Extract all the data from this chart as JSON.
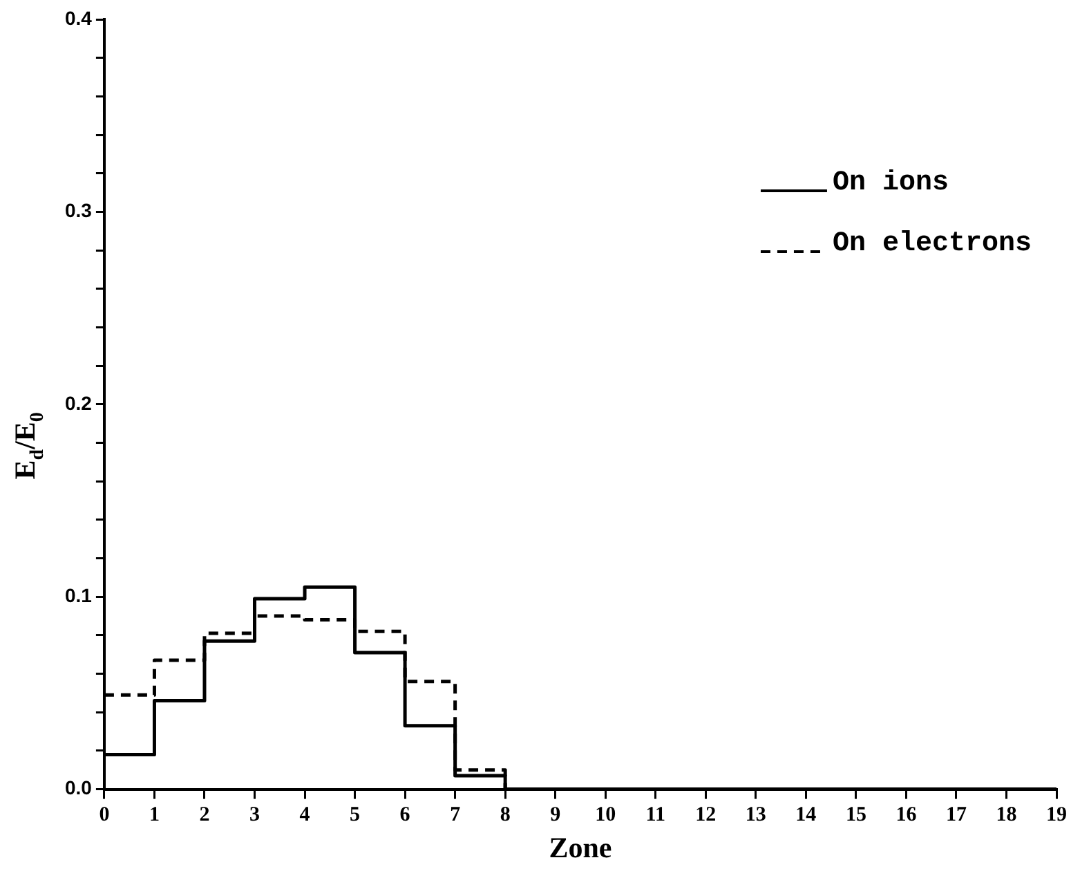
{
  "chart_data": {
    "type": "step",
    "xlabel": "Zone",
    "ylabel": "E$_{d}$/E$_{0}$",
    "x": [
      0,
      1,
      2,
      3,
      4,
      5,
      6,
      7,
      8,
      9,
      10,
      11,
      12,
      13,
      14,
      15,
      16,
      17,
      18,
      19
    ],
    "series": [
      {
        "name": "On ions",
        "color": "#000000",
        "line_style": "solid",
        "values": [
          0.018,
          0.046,
          0.077,
          0.099,
          0.105,
          0.071,
          0.033,
          0.007,
          0,
          0,
          0,
          0,
          0,
          0,
          0,
          0,
          0,
          0,
          0,
          0
        ]
      },
      {
        "name": "On electrons",
        "color": "#000000",
        "line_style": "dashed",
        "values": [
          0.049,
          0.067,
          0.081,
          0.09,
          0.088,
          0.082,
          0.056,
          0.01,
          0,
          0,
          0,
          0,
          0,
          0,
          0,
          0,
          0,
          0,
          0,
          0
        ]
      }
    ],
    "xlim": [
      0,
      19
    ],
    "xticks": [
      0,
      1,
      2,
      3,
      4,
      5,
      6,
      7,
      8,
      9,
      10,
      11,
      12,
      13,
      14,
      15,
      16,
      17,
      18,
      19
    ],
    "ylim": [
      0,
      0.4
    ],
    "yticks": [
      {
        "value": 0,
        "label": "0.0"
      },
      {
        "value": 0.02,
        "label": null
      },
      {
        "value": 0.04,
        "label": null
      },
      {
        "value": 0.06,
        "label": null
      },
      {
        "value": 0.08,
        "label": null
      },
      {
        "value": 0.1,
        "label": "0.1"
      },
      {
        "value": 0.12,
        "label": null
      },
      {
        "value": 0.14,
        "label": null
      },
      {
        "value": 0.16,
        "label": null
      },
      {
        "value": 0.18,
        "label": null
      },
      {
        "value": 0.2,
        "label": "0.2"
      },
      {
        "value": 0.22,
        "label": null
      },
      {
        "value": 0.24,
        "label": null
      },
      {
        "value": 0.26,
        "label": null
      },
      {
        "value": 0.28,
        "label": null
      },
      {
        "value": 0.3,
        "label": "0.3"
      },
      {
        "value": 0.32,
        "label": null
      },
      {
        "value": 0.34,
        "label": null
      },
      {
        "value": 0.36,
        "label": null
      },
      {
        "value": 0.38,
        "label": null
      },
      {
        "value": 0.4,
        "label": "0.4"
      }
    ],
    "grid": false,
    "legend": "top right"
  }
}
